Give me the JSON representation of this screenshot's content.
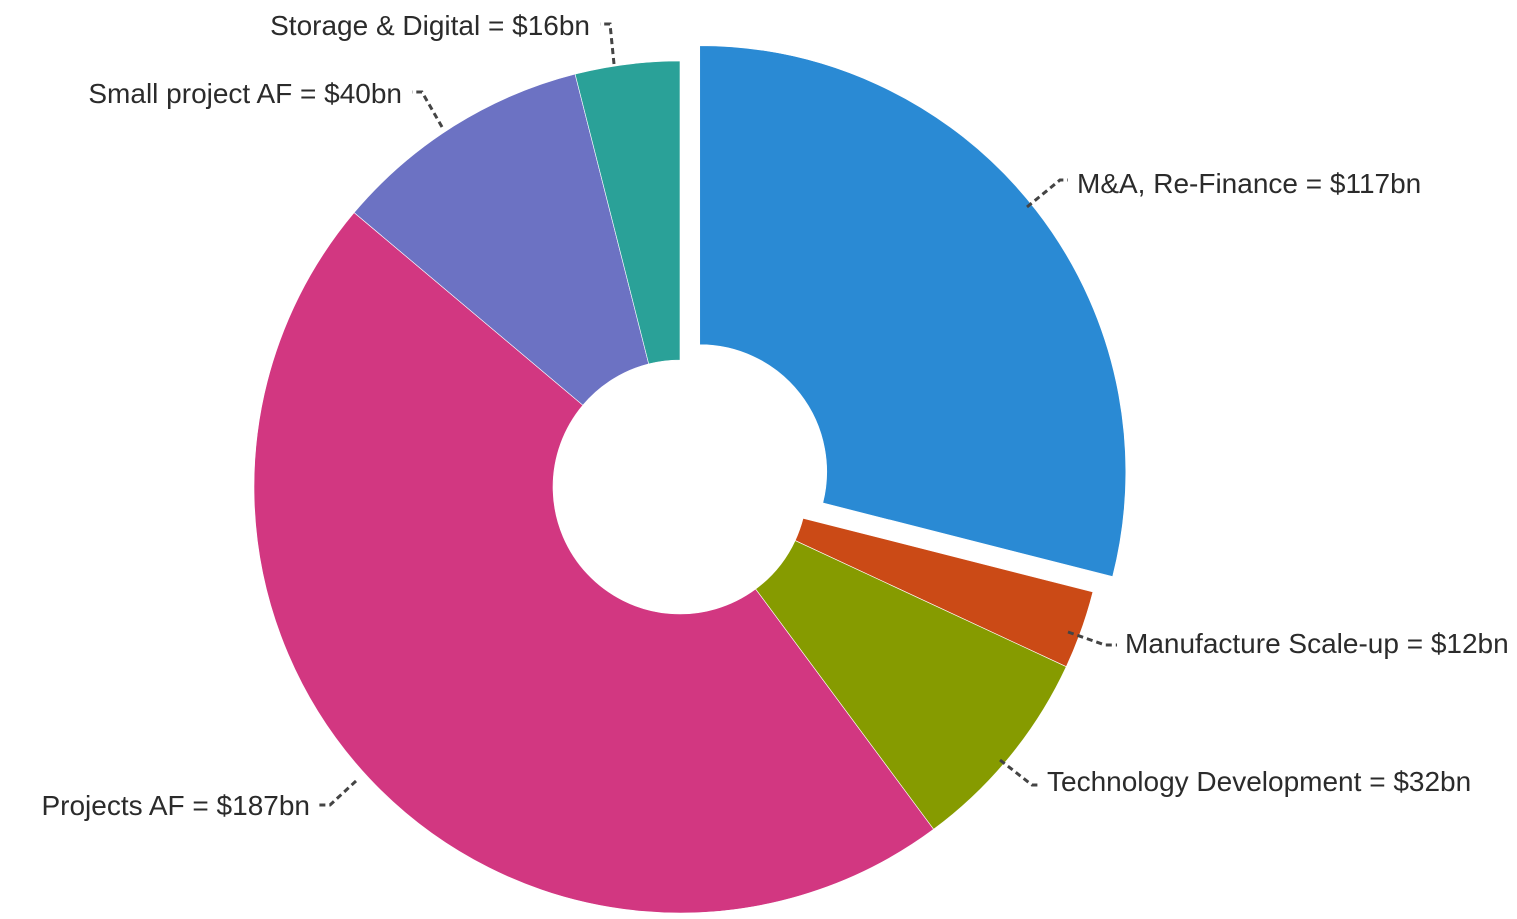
{
  "chart_data": {
    "type": "pie",
    "variant": "donut",
    "title": "",
    "unit": "$bn",
    "slices": [
      {
        "name": "M&A, Re-Finance",
        "value": 117,
        "label": "M&A, Re-Finance = $117bn",
        "color": "#2A8AD4",
        "exploded": true
      },
      {
        "name": "Manufacture Scale-up",
        "value": 12,
        "label": "Manufacture Scale-up = $12bn",
        "color": "#CB4A16",
        "exploded": false
      },
      {
        "name": "Technology Development",
        "value": 32,
        "label": "Technology Development = $32bn",
        "color": "#869B00",
        "exploded": false
      },
      {
        "name": "Projects AF",
        "value": 187,
        "label": "Projects AF = $187bn",
        "color": "#D23781",
        "exploded": false
      },
      {
        "name": "Small project AF",
        "value": 40,
        "label": "Small project AF = $40bn",
        "color": "#6C72C3",
        "exploded": false
      },
      {
        "name": "Storage & Digital",
        "value": 16,
        "label": "Storage & Digital = $16bn",
        "color": "#2AA198",
        "exploded": false
      }
    ]
  }
}
